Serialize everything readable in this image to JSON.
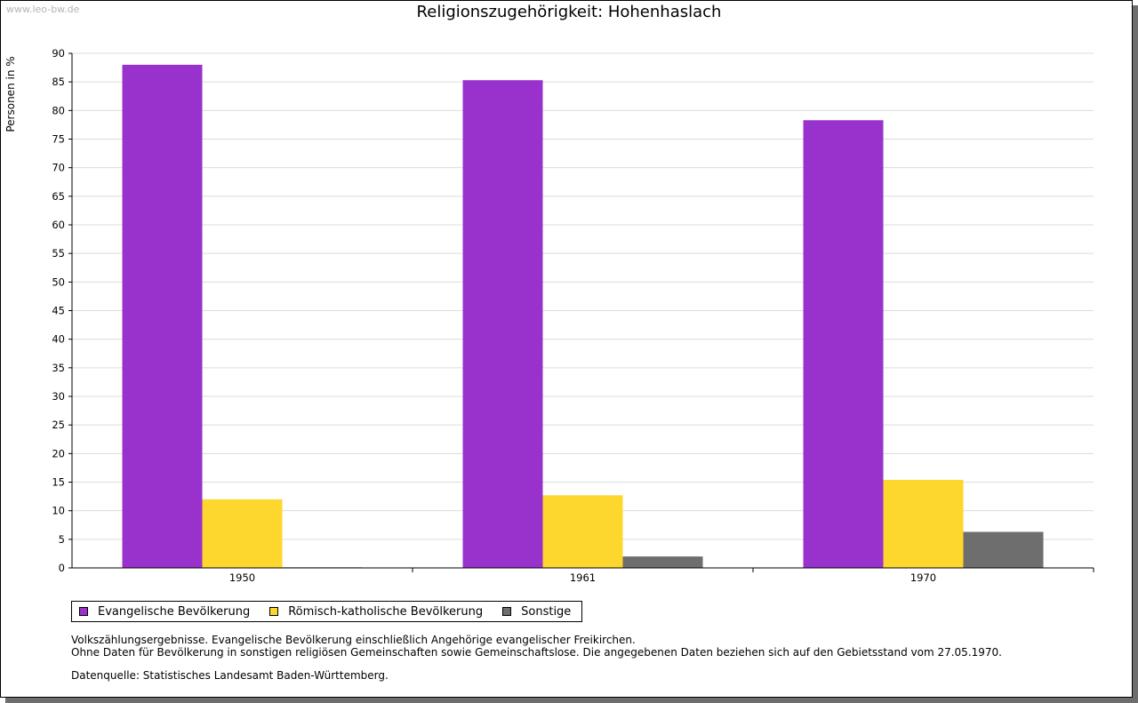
{
  "watermark": "www.leo-bw.de",
  "chart_data": {
    "type": "bar",
    "title": "Religionszugehörigkeit: Hohenhaslach",
    "xlabel": "",
    "ylabel": "Personen in %",
    "ylim": [
      0,
      90
    ],
    "ytick_step": 5,
    "grid": true,
    "legend_position": "bottom-left",
    "categories": [
      "1950",
      "1961",
      "1970"
    ],
    "series": [
      {
        "name": "Evangelische Bevölkerung",
        "color": "#9932cc",
        "values": [
          88.0,
          85.3,
          78.3
        ]
      },
      {
        "name": "Römisch-katholische Bevölkerung",
        "color": "#fdd72d",
        "values": [
          12.0,
          12.7,
          15.4
        ]
      },
      {
        "name": "Sonstige",
        "color": "#6e6e6e",
        "values": [
          0.1,
          2.0,
          6.3
        ]
      }
    ]
  },
  "notes": {
    "line1": "Volkszählungsergebnisse. Evangelische Bevölkerung einschließlich Angehörige evangelischer Freikirchen.",
    "line2": "Ohne Daten für Bevölkerung in sonstigen religiösen Gemeinschaften sowie Gemeinschaftslose. Die angegebenen Daten beziehen sich auf den Gebietsstand vom 27.05.1970.",
    "source": "Datenquelle: Statistisches Landesamt Baden-Württemberg."
  }
}
